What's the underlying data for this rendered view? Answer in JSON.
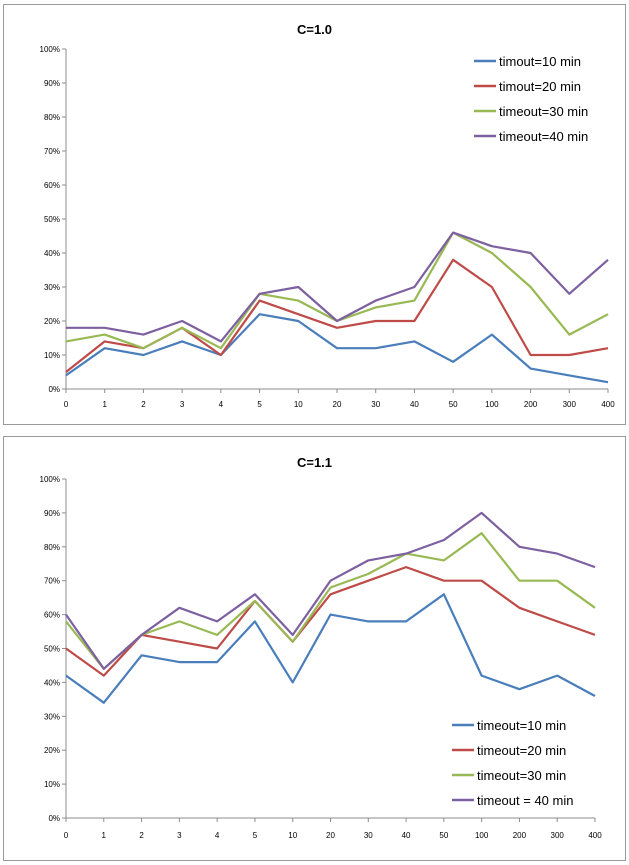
{
  "colors": {
    "series_1": "#4a7ebb",
    "series_2": "#be4b48",
    "series_3": "#98b954",
    "series_4": "#7d60a0",
    "axis": "#8c8c8c"
  },
  "chart_data": [
    {
      "type": "line",
      "title": "C=1.0",
      "categories": [
        "0",
        "1",
        "2",
        "3",
        "4",
        "5",
        "10",
        "20",
        "30",
        "40",
        "50",
        "100",
        "200",
        "300",
        "400"
      ],
      "ylim": [
        0,
        100
      ],
      "yticks": [
        "0%",
        "10%",
        "20%",
        "30%",
        "40%",
        "50%",
        "60%",
        "70%",
        "80%",
        "90%",
        "100%"
      ],
      "grid": false,
      "legend_position": "top-right",
      "series": [
        {
          "name": "timout=10 min",
          "values": [
            4,
            12,
            10,
            14,
            10,
            22,
            20,
            12,
            12,
            14,
            8,
            16,
            6,
            4,
            2
          ]
        },
        {
          "name": "timout=20 min",
          "values": [
            5,
            14,
            12,
            18,
            10,
            26,
            22,
            18,
            20,
            20,
            38,
            30,
            10,
            10,
            12
          ]
        },
        {
          "name": "timeout=30 min",
          "values": [
            14,
            16,
            12,
            18,
            12,
            28,
            26,
            20,
            24,
            26,
            46,
            40,
            30,
            16,
            22
          ]
        },
        {
          "name": "timeout=40 min",
          "values": [
            18,
            18,
            16,
            20,
            14,
            28,
            30,
            20,
            26,
            30,
            46,
            42,
            40,
            28,
            38
          ]
        }
      ]
    },
    {
      "type": "line",
      "title": "C=1.1",
      "categories": [
        "0",
        "1",
        "2",
        "3",
        "4",
        "5",
        "10",
        "20",
        "30",
        "40",
        "50",
        "100",
        "200",
        "300",
        "400"
      ],
      "ylim": [
        0,
        100
      ],
      "yticks": [
        "0%",
        "10%",
        "20%",
        "30%",
        "40%",
        "50%",
        "60%",
        "70%",
        "80%",
        "90%",
        "100%"
      ],
      "grid": false,
      "legend_position": "bottom-right",
      "series": [
        {
          "name": "timeout=10 min",
          "values": [
            42,
            34,
            48,
            46,
            46,
            58,
            40,
            60,
            58,
            58,
            66,
            42,
            38,
            42,
            36
          ]
        },
        {
          "name": "timeout=20 min",
          "values": [
            50,
            42,
            54,
            52,
            50,
            64,
            52,
            66,
            70,
            74,
            70,
            70,
            62,
            58,
            54
          ]
        },
        {
          "name": "timeout=30 min",
          "values": [
            58,
            44,
            54,
            58,
            54,
            64,
            52,
            68,
            72,
            78,
            76,
            84,
            70,
            70,
            62
          ]
        },
        {
          "name": "timeout = 40 min",
          "values": [
            60,
            44,
            54,
            62,
            58,
            66,
            54,
            70,
            76,
            78,
            82,
            90,
            80,
            78,
            74
          ]
        }
      ]
    }
  ]
}
